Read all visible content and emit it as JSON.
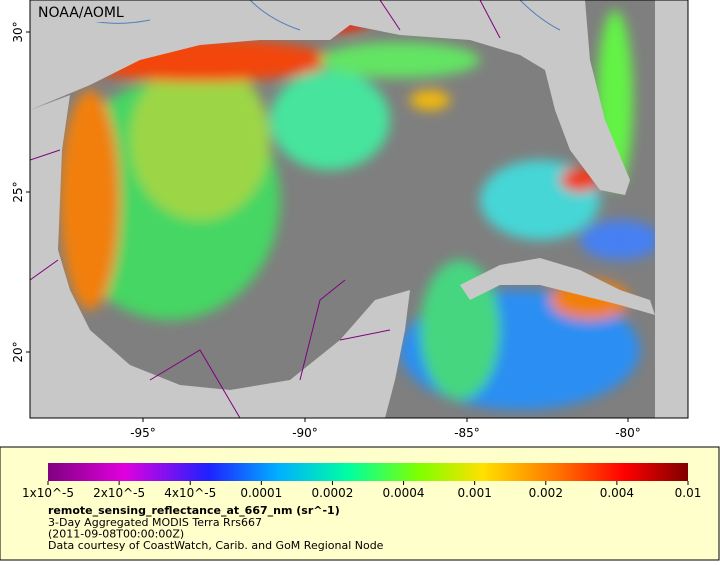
{
  "map": {
    "credit": "NOAA/AOML",
    "lat_labels": [
      "30°",
      "25°",
      "20°"
    ],
    "lon_labels": [
      "-95°",
      "-90°",
      "-85°",
      "-80°"
    ]
  },
  "colorbar": {
    "labels": [
      "1x10^-5",
      "2x10^-5",
      "4x10^-5",
      "0.0001",
      "0.0002",
      "0.0004",
      "0.001",
      "0.002",
      "0.004",
      "0.01"
    ]
  },
  "caption": {
    "title": "remote_sensing_reflectance_at_667_nm (sr^-1)",
    "lines": [
      "3-Day Aggregated MODIS Terra Rrs667",
      "(2011-09-08T00:00:00Z)",
      "Data courtesy of CoastWatch, Carib. and GoM Regional Node"
    ]
  }
}
